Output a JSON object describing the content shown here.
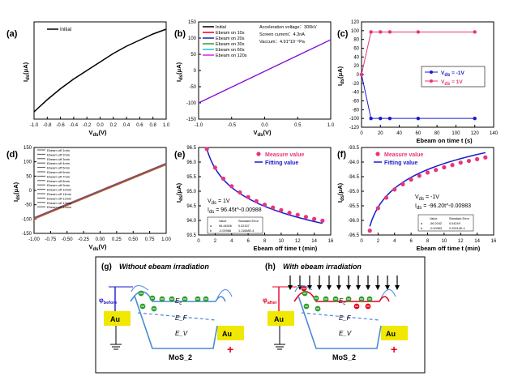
{
  "colors": {
    "black": "#000000",
    "red": "#e8001c",
    "blue": "#1a1acc",
    "green": "#2a9d2a",
    "cyan": "#20c0d0",
    "magenta": "#e020e0",
    "pink": "#e8357a",
    "gold": "#f0e800",
    "lightblue": "#4a8ad8"
  },
  "chart_data": [
    {
      "panel": "(a)",
      "type": "line",
      "xlabel": "V_ds(V)",
      "ylabel": "I_ds(μA)",
      "xlim": [
        -1.0,
        1.0
      ],
      "ylim": [
        -0.5,
        0.3
      ],
      "xticks": [
        "-1.0",
        "-0.8",
        "-0.6",
        "-0.4",
        "-0.2",
        "0.0",
        "0.2",
        "0.4",
        "0.6",
        "0.8",
        "1.0"
      ],
      "yticks": [],
      "legend": [
        "Initial"
      ],
      "series": [
        {
          "name": "Initial",
          "x": [
            -1.0,
            -0.8,
            -0.6,
            -0.4,
            -0.2,
            0.0,
            0.2,
            0.4,
            0.6,
            0.8,
            1.0
          ],
          "y": [
            -0.44,
            -0.34,
            -0.25,
            -0.17,
            -0.1,
            -0.03,
            0.04,
            0.1,
            0.15,
            0.2,
            0.24
          ]
        }
      ]
    },
    {
      "panel": "(b)",
      "type": "line",
      "xlabel": "V_ds(V)",
      "ylabel": "I_ds(μA)",
      "xlim": [
        -1.0,
        1.0
      ],
      "ylim": [
        -150,
        150
      ],
      "xticks": [
        "-1.0",
        "-0.5",
        "0.0",
        "0.5",
        "1.0"
      ],
      "yticks": [
        "-150",
        "-100",
        "-50",
        "0",
        "50",
        "100",
        "150"
      ],
      "legend": [
        "Initial",
        "Ebeam on 10s",
        "Ebeam on 20s",
        "Ebeam on 30s",
        "Ebeam on 60s",
        "Ebeam on 120s"
      ],
      "annotation": [
        "Acceleration voltage：300kV",
        "Screen current：4.3nA",
        "Vaccum：4.91*10⁻⁵Pa"
      ],
      "series": [
        {
          "name": "Ebeam on 120s",
          "x": [
            -1.0,
            1.0
          ],
          "y": [
            -100,
            95
          ]
        }
      ]
    },
    {
      "panel": "(c)",
      "type": "line",
      "xlabel": "Ebeam on time t (s)",
      "ylabel": "I_ds(μA)",
      "xlim": [
        0,
        140
      ],
      "ylim": [
        -120,
        120
      ],
      "xticks": [
        "0",
        "20",
        "40",
        "60",
        "80",
        "100",
        "120",
        "140"
      ],
      "yticks": [
        "-120",
        "-100",
        "-80",
        "-60",
        "-40",
        "-20",
        "0",
        "20",
        "40",
        "60",
        "80",
        "100",
        "120"
      ],
      "legend": [
        "V_ds = -1V",
        "V_ds = 1V"
      ],
      "series": [
        {
          "name": "V_ds = -1V",
          "x": [
            0,
            10,
            20,
            30,
            60,
            120
          ],
          "y": [
            0,
            -100,
            -100,
            -100,
            -100,
            -100
          ]
        },
        {
          "name": "V_ds = 1V",
          "x": [
            0,
            10,
            20,
            30,
            60,
            120
          ],
          "y": [
            0,
            97,
            97,
            97,
            97,
            97
          ]
        }
      ]
    },
    {
      "panel": "(d)",
      "type": "line",
      "xlabel": "V_ds(V)",
      "ylabel": "I_ds(μA)",
      "xlim": [
        -1.0,
        1.0
      ],
      "ylim": [
        -150,
        150
      ],
      "xticks": [
        "-1.00",
        "-0.75",
        "-0.50",
        "-0.25",
        "0.00",
        "0.25",
        "0.50",
        "0.75",
        "1.00"
      ],
      "yticks": [
        "-150",
        "-100",
        "-50",
        "0",
        "50",
        "100",
        "150"
      ],
      "legend": [
        "Ebeam off 1min",
        "Ebeam off 2min",
        "Ebeam off 3min",
        "Ebeam off 4min",
        "Ebeam off 5min",
        "Ebeam off 6min",
        "Ebeam off 7min",
        "Ebeam off 8min",
        "Ebeam off 9min",
        "Ebeam off 10min",
        "Ebeam off 11min",
        "Ebeam off 12min",
        "Ebeam off 13min",
        "Ebeam off 14min"
      ],
      "series": [
        {
          "name": "Ebeam off 14min",
          "x": [
            -1.0,
            1.0
          ],
          "y": [
            -95,
            95
          ]
        }
      ]
    },
    {
      "panel": "(e)",
      "type": "scatter",
      "xlabel": "Ebeam off time t (min)",
      "ylabel": "I_ds(μA)",
      "xlim": [
        0,
        16
      ],
      "ylim": [
        93.5,
        96.5
      ],
      "xticks": [
        "0",
        "2",
        "4",
        "6",
        "8",
        "10",
        "12",
        "14",
        "16"
      ],
      "yticks": [
        "93.5",
        "94.0",
        "94.5",
        "95.0",
        "95.5",
        "96.0",
        "96.5"
      ],
      "legend": [
        "Measure value",
        "Fitting value"
      ],
      "annotation": [
        "V_ds = 1V",
        "I_ds = 96.45t^-0.00988"
      ],
      "fit_table": {
        "headers": [
          "",
          "Value",
          "Standard Error"
        ],
        "rows": [
          [
            "a",
            "96.44506",
            "0.02157"
          ],
          [
            "b",
            "-0.00988",
            "1.11658E-4"
          ]
        ]
      },
      "series": [
        {
          "name": "Measure value",
          "x": [
            1,
            2,
            3,
            4,
            5,
            6,
            7,
            8,
            9,
            10,
            11,
            12,
            13,
            14,
            15
          ],
          "y": [
            96.45,
            95.81,
            95.43,
            95.17,
            94.96,
            94.8,
            94.66,
            94.54,
            94.44,
            94.35,
            94.26,
            94.19,
            94.12,
            94.05,
            93.99
          ]
        }
      ]
    },
    {
      "panel": "(f)",
      "type": "scatter",
      "xlabel": "Ebeam off time t (min)",
      "ylabel": "I_ds(μA)",
      "xlim": [
        0,
        16
      ],
      "ylim": [
        -96.5,
        -93.5
      ],
      "xticks": [
        "0",
        "2",
        "4",
        "6",
        "8",
        "10",
        "12",
        "14",
        "16"
      ],
      "yticks": [
        "-96.5",
        "-96.0",
        "-95.5",
        "-95.0",
        "-94.5",
        "-94.0",
        "-93.5"
      ],
      "legend": [
        "Measure value",
        "Fitting value"
      ],
      "annotation": [
        "V_ds = -1V",
        "I_ds = -96.20t^-0.00983"
      ],
      "fit_table": {
        "headers": [
          "",
          "Value",
          "Standard Error"
        ],
        "rows": [
          [
            "a",
            "-96.2042",
            "0.04249"
          ],
          [
            "b",
            "-0.00983",
            "2.20914E-4"
          ]
        ]
      },
      "series": [
        {
          "name": "Measure value",
          "x": [
            1,
            2,
            3,
            4,
            5,
            6,
            7,
            8,
            9,
            10,
            11,
            12,
            13,
            14,
            15
          ],
          "y": [
            -96.35,
            -95.58,
            -95.22,
            -94.94,
            -94.76,
            -94.6,
            -94.47,
            -94.36,
            -94.27,
            -94.18,
            -94.1,
            -94.02,
            -93.96,
            -93.9,
            -93.84
          ]
        }
      ]
    }
  ],
  "diagram": {
    "g": {
      "label": "(g)",
      "title": "Without ebeam irradiation",
      "phi": "φbefore",
      "ec": "Ec",
      "ef": "EF",
      "ev": "EV",
      "au_left": "Au",
      "au_right": "Au",
      "material": "MoS2"
    },
    "h": {
      "label": "(h)",
      "title": "With ebeam irradiation",
      "phi": "φafter",
      "ec": "Ec",
      "ef": "EF",
      "ev": "EV",
      "au_left": "Au",
      "au_right": "Au",
      "material": "MoS2"
    }
  }
}
